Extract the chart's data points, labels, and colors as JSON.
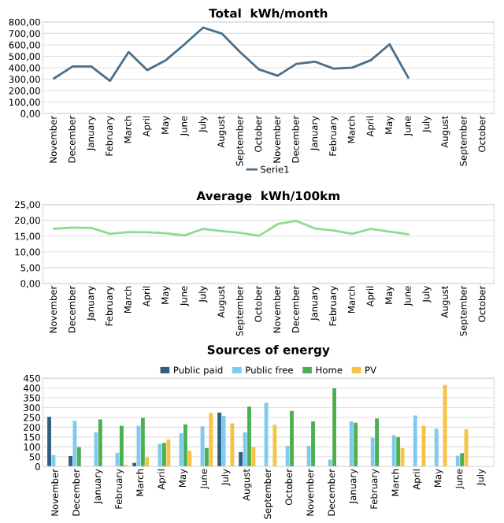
{
  "chart_data": [
    {
      "type": "line",
      "title": "Total  kWh/month",
      "categories": [
        "November",
        "December",
        "January",
        "February",
        "March",
        "April",
        "May",
        "June",
        "July",
        "August",
        "September",
        "October",
        "November",
        "December",
        "January",
        "February",
        "March",
        "April",
        "May",
        "June",
        "July",
        "August",
        "September",
        "October"
      ],
      "series": [
        {
          "name": "Serie1",
          "color": "#4a6f8a",
          "values": [
            307,
            411,
            411,
            285,
            537,
            379,
            466,
            605,
            751,
            699,
            534,
            385,
            330,
            434,
            453,
            392,
            401,
            466,
            605,
            314,
            null,
            null,
            null,
            null
          ]
        }
      ],
      "ylim": [
        0,
        800
      ],
      "yticks": [
        {
          "value": 0,
          "label": "0,00"
        },
        {
          "value": 100,
          "label": "100,00"
        },
        {
          "value": 200,
          "label": "200,00"
        },
        {
          "value": 300,
          "label": "300,00"
        },
        {
          "value": 400,
          "label": "400,00"
        },
        {
          "value": 500,
          "label": "500,00"
        },
        {
          "value": 600,
          "label": "600,00"
        },
        {
          "value": 700,
          "label": "700,00"
        },
        {
          "value": 800,
          "label": "800,00"
        }
      ],
      "grid": "y",
      "legend": "bottom",
      "marker": "none",
      "line_style": "solid"
    },
    {
      "type": "line",
      "title": "Average  kWh/100km",
      "categories": [
        "November",
        "December",
        "January",
        "February",
        "March",
        "April",
        "May",
        "June",
        "July",
        "August",
        "September",
        "October",
        "November",
        "December",
        "January",
        "February",
        "March",
        "April",
        "May",
        "June",
        "July",
        "August",
        "September",
        "October"
      ],
      "series": [
        {
          "color": "#8fdc8f",
          "values": [
            17.3,
            17.7,
            17.6,
            15.7,
            16.3,
            16.2,
            15.9,
            15.2,
            17.3,
            16.6,
            16.0,
            15.1,
            18.8,
            19.8,
            17.4,
            16.8,
            15.7,
            17.3,
            16.4,
            15.6,
            null,
            null,
            null,
            null
          ]
        }
      ],
      "ylim": [
        0,
        25
      ],
      "yticks": [
        {
          "value": 0,
          "label": "0,00"
        },
        {
          "value": 5,
          "label": "5,00"
        },
        {
          "value": 10,
          "label": "10,00"
        },
        {
          "value": 15,
          "label": "15,00"
        },
        {
          "value": 20,
          "label": "20,00"
        },
        {
          "value": 25,
          "label": "25,00"
        }
      ],
      "grid": "y",
      "marker": "none",
      "line_style": "solid"
    },
    {
      "type": "bar",
      "title": "Sources of energy",
      "categories": [
        "November",
        "December",
        "January",
        "February",
        "March",
        "April",
        "May",
        "June",
        "July",
        "August",
        "September",
        "October",
        "November",
        "December",
        "January",
        "February",
        "March",
        "April",
        "May",
        "June",
        "July"
      ],
      "series": [
        {
          "name": "Public paid",
          "color": "#2e5f7f",
          "values": [
            253,
            53,
            null,
            null,
            18,
            null,
            null,
            null,
            275,
            73,
            null,
            null,
            null,
            null,
            null,
            null,
            null,
            null,
            null,
            null,
            null
          ]
        },
        {
          "name": "Public free",
          "color": "#7fcbee",
          "values": [
            58,
            233,
            175,
            70,
            208,
            115,
            170,
            205,
            258,
            175,
            325,
            105,
            105,
            35,
            230,
            147,
            160,
            260,
            193,
            55,
            null
          ]
        },
        {
          "name": "Home",
          "color": "#4caf50",
          "values": [
            null,
            98,
            240,
            207,
            248,
            120,
            215,
            93,
            null,
            305,
            null,
            283,
            230,
            398,
            223,
            245,
            150,
            null,
            null,
            68,
            null
          ]
        },
        {
          "name": "PV",
          "color": "#f7c341",
          "values": [
            null,
            null,
            null,
            8,
            48,
            138,
            80,
            273,
            220,
            98,
            213,
            null,
            null,
            null,
            null,
            null,
            93,
            208,
            415,
            190,
            null
          ]
        }
      ],
      "ylim": [
        0,
        450
      ],
      "yticks": [
        0,
        50,
        100,
        150,
        200,
        250,
        300,
        350,
        400,
        450
      ],
      "grid": "y",
      "legend": "top"
    }
  ]
}
